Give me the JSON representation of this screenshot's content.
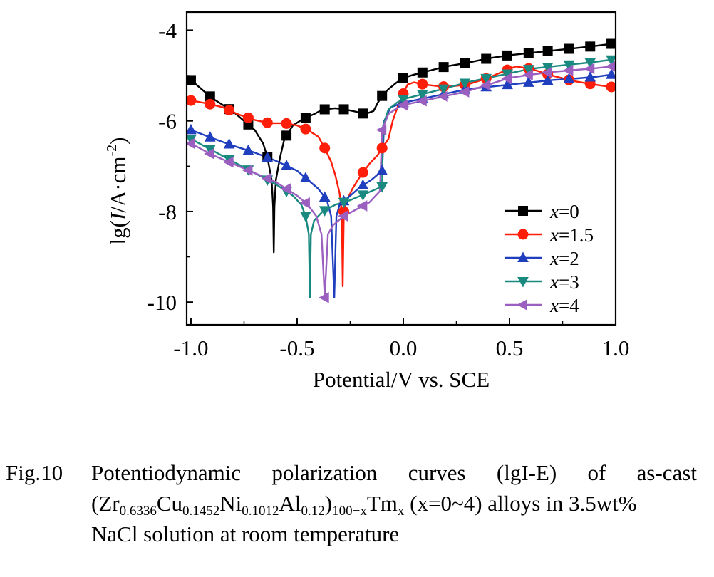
{
  "chart_data": {
    "type": "line",
    "xlabel": "Potential/V vs. SCE",
    "ylabel_parts": [
      "lg(",
      "I",
      "/A·cm",
      "-2",
      ")"
    ],
    "xlim": [
      -1.02,
      1.0
    ],
    "ylim": [
      -10.5,
      -3.6
    ],
    "xticks": [
      -1.0,
      -0.5,
      0.0,
      0.5,
      1.0
    ],
    "xtick_labels": [
      "-1.0",
      "-0.5",
      "0.0",
      "0.5",
      "1.0"
    ],
    "yticks": [
      -4,
      -6,
      -8,
      -10
    ],
    "ytick_labels": [
      "-4",
      "-6",
      "-8",
      "-10"
    ],
    "legend_position": "bottom-right",
    "series": [
      {
        "name_prefix": "x",
        "name_value": "=0",
        "color": "#000000",
        "marker": "square",
        "points": [
          [
            -1.0,
            -5.1
          ],
          [
            -0.95,
            -5.3
          ],
          [
            -0.9,
            -5.5
          ],
          [
            -0.85,
            -5.65
          ],
          [
            -0.8,
            -5.8
          ],
          [
            -0.75,
            -6.0
          ],
          [
            -0.7,
            -6.2
          ],
          [
            -0.66,
            -6.5
          ],
          [
            -0.64,
            -6.8
          ],
          [
            -0.62,
            -7.3
          ],
          [
            -0.613,
            -7.9
          ],
          [
            -0.61,
            -8.9
          ],
          [
            -0.607,
            -7.9
          ],
          [
            -0.6,
            -7.3
          ],
          [
            -0.58,
            -6.8
          ],
          [
            -0.56,
            -6.4
          ],
          [
            -0.52,
            -6.1
          ],
          [
            -0.47,
            -5.95
          ],
          [
            -0.42,
            -5.85
          ],
          [
            -0.38,
            -5.75
          ],
          [
            -0.32,
            -5.72
          ],
          [
            -0.27,
            -5.75
          ],
          [
            -0.22,
            -5.8
          ],
          [
            -0.18,
            -5.85
          ],
          [
            -0.14,
            -5.78
          ],
          [
            -0.12,
            -5.6
          ],
          [
            -0.1,
            -5.45
          ],
          [
            -0.07,
            -5.3
          ],
          [
            -0.03,
            -5.15
          ],
          [
            0.0,
            -5.05
          ],
          [
            0.05,
            -4.98
          ],
          [
            0.1,
            -4.92
          ],
          [
            0.2,
            -4.8
          ],
          [
            0.3,
            -4.72
          ],
          [
            0.4,
            -4.62
          ],
          [
            0.5,
            -4.55
          ],
          [
            0.6,
            -4.5
          ],
          [
            0.7,
            -4.45
          ],
          [
            0.8,
            -4.4
          ],
          [
            0.9,
            -4.35
          ],
          [
            0.98,
            -4.3
          ]
        ],
        "marker_x": [
          -1.0,
          -0.91,
          -0.82,
          -0.73,
          -0.64,
          -0.55,
          -0.46,
          -0.37,
          -0.28,
          -0.19,
          -0.1,
          0.0,
          0.09,
          0.19,
          0.29,
          0.39,
          0.49,
          0.59,
          0.68,
          0.78,
          0.88,
          0.98
        ]
      },
      {
        "name_prefix": "x",
        "name_value": "=1.5",
        "color": "#ff1e0a",
        "marker": "circle",
        "points": [
          [
            -1.0,
            -5.55
          ],
          [
            -0.92,
            -5.62
          ],
          [
            -0.85,
            -5.7
          ],
          [
            -0.78,
            -5.85
          ],
          [
            -0.7,
            -5.98
          ],
          [
            -0.63,
            -6.05
          ],
          [
            -0.56,
            -6.05
          ],
          [
            -0.5,
            -6.1
          ],
          [
            -0.45,
            -6.2
          ],
          [
            -0.4,
            -6.35
          ],
          [
            -0.37,
            -6.6
          ],
          [
            -0.34,
            -6.9
          ],
          [
            -0.32,
            -7.2
          ],
          [
            -0.3,
            -7.6
          ],
          [
            -0.29,
            -8.0
          ],
          [
            -0.285,
            -9.65
          ],
          [
            -0.28,
            -8.0
          ],
          [
            -0.27,
            -7.8
          ],
          [
            -0.24,
            -7.5
          ],
          [
            -0.2,
            -7.2
          ],
          [
            -0.16,
            -6.95
          ],
          [
            -0.12,
            -6.75
          ],
          [
            -0.1,
            -6.6
          ],
          [
            -0.07,
            -6.4
          ],
          [
            -0.05,
            -6.0
          ],
          [
            -0.02,
            -5.6
          ],
          [
            0.0,
            -5.4
          ],
          [
            0.02,
            -5.2
          ],
          [
            0.05,
            -5.15
          ],
          [
            0.1,
            -5.2
          ],
          [
            0.2,
            -5.25
          ],
          [
            0.3,
            -5.2
          ],
          [
            0.4,
            -5.05
          ],
          [
            0.45,
            -4.95
          ],
          [
            0.53,
            -4.8
          ],
          [
            0.6,
            -4.85
          ],
          [
            0.7,
            -5.0
          ],
          [
            0.8,
            -5.12
          ],
          [
            0.9,
            -5.2
          ],
          [
            0.98,
            -5.25
          ]
        ],
        "marker_x": [
          -1.0,
          -0.91,
          -0.82,
          -0.73,
          -0.64,
          -0.55,
          -0.46,
          -0.37,
          -0.28,
          -0.19,
          -0.1,
          0.0,
          0.09,
          0.19,
          0.29,
          0.39,
          0.49,
          0.59,
          0.68,
          0.78,
          0.88,
          0.98
        ]
      },
      {
        "name_prefix": "x",
        "name_value": "=2",
        "color": "#1f3fbf",
        "marker": "triangle-up",
        "points": [
          [
            -1.0,
            -6.2
          ],
          [
            -0.9,
            -6.38
          ],
          [
            -0.8,
            -6.55
          ],
          [
            -0.7,
            -6.7
          ],
          [
            -0.6,
            -6.88
          ],
          [
            -0.5,
            -7.1
          ],
          [
            -0.45,
            -7.3
          ],
          [
            -0.4,
            -7.5
          ],
          [
            -0.36,
            -7.75
          ],
          [
            -0.34,
            -8.1
          ],
          [
            -0.325,
            -9.9
          ],
          [
            -0.315,
            -8.1
          ],
          [
            -0.3,
            -7.85
          ],
          [
            -0.25,
            -7.65
          ],
          [
            -0.2,
            -7.45
          ],
          [
            -0.15,
            -7.3
          ],
          [
            -0.1,
            -7.1
          ],
          [
            -0.09,
            -6.0
          ],
          [
            -0.06,
            -5.7
          ],
          [
            0.0,
            -5.6
          ],
          [
            0.1,
            -5.5
          ],
          [
            0.2,
            -5.4
          ],
          [
            0.3,
            -5.3
          ],
          [
            0.4,
            -5.25
          ],
          [
            0.5,
            -5.2
          ],
          [
            0.6,
            -5.15
          ],
          [
            0.7,
            -5.1
          ],
          [
            0.8,
            -5.07
          ],
          [
            0.9,
            -5.03
          ],
          [
            0.98,
            -4.98
          ]
        ],
        "marker_x": [
          -1.0,
          -0.91,
          -0.82,
          -0.73,
          -0.64,
          -0.55,
          -0.46,
          -0.37,
          -0.28,
          -0.19,
          -0.1,
          0.0,
          0.09,
          0.19,
          0.29,
          0.39,
          0.49,
          0.59,
          0.68,
          0.78,
          0.88,
          0.98
        ]
      },
      {
        "name_prefix": "x",
        "name_value": "=3",
        "color": "#1a8a80",
        "marker": "triangle-down",
        "points": [
          [
            -1.0,
            -6.4
          ],
          [
            -0.9,
            -6.65
          ],
          [
            -0.8,
            -6.9
          ],
          [
            -0.7,
            -7.15
          ],
          [
            -0.6,
            -7.4
          ],
          [
            -0.52,
            -7.65
          ],
          [
            -0.48,
            -7.85
          ],
          [
            -0.46,
            -8.1
          ],
          [
            -0.445,
            -8.5
          ],
          [
            -0.44,
            -9.9
          ],
          [
            -0.435,
            -8.5
          ],
          [
            -0.42,
            -8.2
          ],
          [
            -0.38,
            -8.0
          ],
          [
            -0.32,
            -7.85
          ],
          [
            -0.25,
            -7.75
          ],
          [
            -0.2,
            -7.65
          ],
          [
            -0.15,
            -7.55
          ],
          [
            -0.1,
            -7.45
          ],
          [
            -0.095,
            -6.1
          ],
          [
            -0.07,
            -5.75
          ],
          [
            -0.03,
            -5.6
          ],
          [
            0.0,
            -5.52
          ],
          [
            0.1,
            -5.4
          ],
          [
            0.2,
            -5.28
          ],
          [
            0.3,
            -5.15
          ],
          [
            0.4,
            -5.05
          ],
          [
            0.5,
            -4.95
          ],
          [
            0.6,
            -4.85
          ],
          [
            0.7,
            -4.8
          ],
          [
            0.8,
            -4.75
          ],
          [
            0.9,
            -4.7
          ],
          [
            0.98,
            -4.65
          ]
        ],
        "marker_x": [
          -1.0,
          -0.91,
          -0.82,
          -0.73,
          -0.64,
          -0.55,
          -0.46,
          -0.37,
          -0.28,
          -0.19,
          -0.1,
          0.0,
          0.09,
          0.19,
          0.29,
          0.39,
          0.49,
          0.59,
          0.68,
          0.78,
          0.88,
          0.98
        ]
      },
      {
        "name_prefix": "x",
        "name_value": "=4",
        "color": "#9b5fc0",
        "marker": "triangle-left",
        "points": [
          [
            -1.0,
            -6.5
          ],
          [
            -0.9,
            -6.75
          ],
          [
            -0.8,
            -6.95
          ],
          [
            -0.7,
            -7.15
          ],
          [
            -0.6,
            -7.35
          ],
          [
            -0.5,
            -7.65
          ],
          [
            -0.45,
            -7.85
          ],
          [
            -0.41,
            -8.1
          ],
          [
            -0.385,
            -8.5
          ],
          [
            -0.37,
            -9.9
          ],
          [
            -0.355,
            -8.5
          ],
          [
            -0.33,
            -8.3
          ],
          [
            -0.28,
            -8.1
          ],
          [
            -0.22,
            -7.95
          ],
          [
            -0.16,
            -7.8
          ],
          [
            -0.11,
            -7.55
          ],
          [
            -0.1,
            -6.2
          ],
          [
            -0.07,
            -5.85
          ],
          [
            -0.03,
            -5.72
          ],
          [
            0.0,
            -5.65
          ],
          [
            0.1,
            -5.55
          ],
          [
            0.2,
            -5.45
          ],
          [
            0.3,
            -5.35
          ],
          [
            0.4,
            -5.2
          ],
          [
            0.5,
            -5.05
          ],
          [
            0.6,
            -4.98
          ],
          [
            0.7,
            -4.92
          ],
          [
            0.8,
            -4.88
          ],
          [
            0.9,
            -4.84
          ],
          [
            0.98,
            -4.8
          ]
        ],
        "marker_x": [
          -1.0,
          -0.91,
          -0.82,
          -0.73,
          -0.64,
          -0.55,
          -0.46,
          -0.37,
          -0.28,
          -0.19,
          -0.1,
          0.0,
          0.09,
          0.19,
          0.29,
          0.39,
          0.49,
          0.59,
          0.68,
          0.78,
          0.88,
          0.98
        ]
      }
    ]
  },
  "caption": {
    "label": "Fig.10",
    "line1_words": [
      "Potentiodynamic",
      "polarization",
      "curves",
      "(lgI-E)",
      "of",
      "as-cast"
    ],
    "formula": {
      "open": "(",
      "elements": [
        {
          "symbol": "Zr",
          "sub": "0.6336"
        },
        {
          "symbol": "Cu",
          "sub": "0.1452"
        },
        {
          "symbol": "Ni",
          "sub": "0.1012"
        },
        {
          "symbol": "Al",
          "sub": "0.12"
        }
      ],
      "close": ")",
      "outer_sub": "100−x",
      "dopant": "Tm",
      "dopant_sub": "x"
    },
    "range_text": "(x=0~4)",
    "line2_rest": "alloys in 3.5wt%",
    "line3": "NaCl solution at room temperature"
  }
}
